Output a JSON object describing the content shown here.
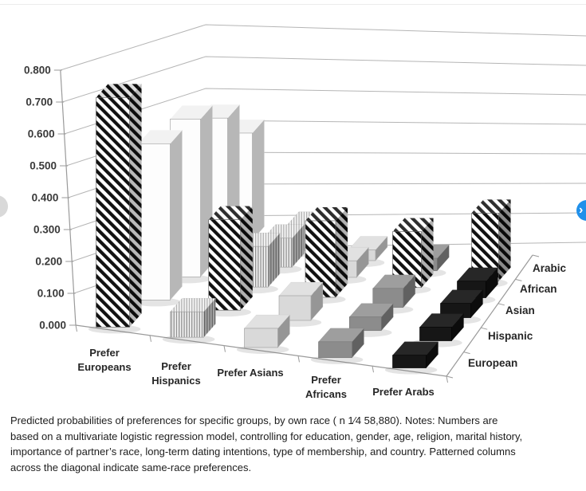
{
  "page": {
    "background": "#ffffff"
  },
  "nav": {
    "prev": {
      "label": "previous figure",
      "color": "#d9d9d9",
      "glyph": "‹"
    },
    "next": {
      "label": "next figure",
      "color": "#2090ea",
      "glyph": "›"
    }
  },
  "chart_data": {
    "type": "bar",
    "subtype": "3d-column",
    "title": "",
    "categories": [
      "Prefer Europeans",
      "Prefer Hispanics",
      "Prefer Asians",
      "Prefer Africans",
      "Prefer Arabs"
    ],
    "category_label_lines": [
      [
        "Prefer",
        "Europeans"
      ],
      [
        "Prefer",
        "Hispanics"
      ],
      [
        "Prefer Asians"
      ],
      [
        "Prefer",
        "Africans"
      ],
      [
        "Prefer Arabs"
      ]
    ],
    "series": [
      {
        "name": "European",
        "values": [
          0.72,
          0.08,
          0.06,
          0.05,
          0.04
        ]
      },
      {
        "name": "Hispanic",
        "values": [
          0.57,
          0.33,
          0.09,
          0.05,
          0.05
        ]
      },
      {
        "name": "Asian",
        "values": [
          0.66,
          0.17,
          0.32,
          0.08,
          0.06
        ]
      },
      {
        "name": "African",
        "values": [
          0.67,
          0.14,
          0.08,
          0.27,
          0.08
        ]
      },
      {
        "name": "Arabic",
        "values": [
          0.6,
          0.14,
          0.06,
          0.07,
          0.38
        ]
      }
    ],
    "depth_axis_labels_top_to_bottom": [
      "Arabic",
      "African",
      "Asian",
      "Hispanic",
      "European"
    ],
    "value_axis": {
      "min": 0,
      "max": 0.8,
      "step": 0.1,
      "tick_labels": [
        "0.000",
        "0.100",
        "0.200",
        "0.300",
        "0.400",
        "0.500",
        "0.600",
        "0.700",
        "0.800"
      ]
    },
    "same_race_patterned": true,
    "same_race_note": "Patterned columns across the diagonal indicate same-race preferences",
    "grid": true,
    "legend_position": "depth-axis-right",
    "appearance": {
      "category_fills": [
        "#fdfdfd",
        "vertical-stripes",
        "#d9d9d9",
        "#8c8c8c",
        "#161616"
      ],
      "same_race_fill": "diagonal-stripes",
      "stripe_dark": "#111111",
      "stripe_light": "#ffffff",
      "vstripe_bg": "#f1f1f1",
      "vstripe_line": "#8f8f8f",
      "grid_color": "#b5b5b5",
      "axis_color": "#9a9a9a",
      "label_color": "#262626",
      "tick_label_color": "#3a3a3a"
    }
  },
  "caption": {
    "lines": [
      "Predicted probabilities of preferences for specific groups, by own race ( n 1⁄4 58,880). Notes: Numbers are",
      "based on a multivariate logistic regression model, controlling for education, gender, age, religion, marital history,",
      "importance of partner’s race, long-term dating intentions, type of membership, and country. Patterned columns",
      "across the diagonal indicate same-race preferences."
    ]
  }
}
